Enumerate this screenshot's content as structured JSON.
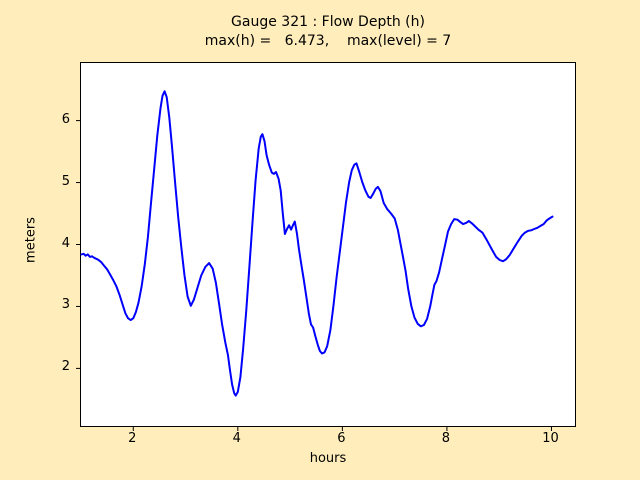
{
  "figure": {
    "background_color": "#ffeebb",
    "plot_background_color": "#ffffff",
    "frame_color": "#000000"
  },
  "chart_data": {
    "type": "line",
    "title": "Gauge 321 : Flow Depth (h)",
    "subtitle": "max(h) =   6.473,    max(level) = 7",
    "xlabel": "hours",
    "ylabel": "meters",
    "max_h": 6.473,
    "max_level": 7,
    "xlim": [
      1.0,
      10.45
    ],
    "ylim": [
      1.07,
      6.93
    ],
    "x_ticks": [
      2,
      4,
      6,
      8,
      10
    ],
    "y_ticks": [
      2,
      3,
      4,
      5,
      6
    ],
    "grid": false,
    "legend": null,
    "series": [
      {
        "name": "flow-depth-h",
        "color": "#0000ff",
        "line_width": 2,
        "points": [
          [
            1.01,
            3.84
          ],
          [
            1.05,
            3.85
          ],
          [
            1.09,
            3.82
          ],
          [
            1.13,
            3.84
          ],
          [
            1.17,
            3.8
          ],
          [
            1.21,
            3.81
          ],
          [
            1.26,
            3.78
          ],
          [
            1.32,
            3.76
          ],
          [
            1.38,
            3.72
          ],
          [
            1.44,
            3.66
          ],
          [
            1.5,
            3.6
          ],
          [
            1.56,
            3.51
          ],
          [
            1.62,
            3.42
          ],
          [
            1.68,
            3.32
          ],
          [
            1.74,
            3.18
          ],
          [
            1.8,
            3.02
          ],
          [
            1.85,
            2.89
          ],
          [
            1.9,
            2.81
          ],
          [
            1.95,
            2.78
          ],
          [
            2.0,
            2.81
          ],
          [
            2.05,
            2.91
          ],
          [
            2.1,
            3.06
          ],
          [
            2.16,
            3.32
          ],
          [
            2.22,
            3.68
          ],
          [
            2.28,
            4.12
          ],
          [
            2.34,
            4.67
          ],
          [
            2.4,
            5.22
          ],
          [
            2.46,
            5.76
          ],
          [
            2.52,
            6.2
          ],
          [
            2.56,
            6.4
          ],
          [
            2.6,
            6.473
          ],
          [
            2.64,
            6.38
          ],
          [
            2.69,
            6.05
          ],
          [
            2.74,
            5.58
          ],
          [
            2.8,
            5.0
          ],
          [
            2.86,
            4.44
          ],
          [
            2.92,
            3.94
          ],
          [
            2.98,
            3.5
          ],
          [
            3.04,
            3.16
          ],
          [
            3.1,
            3.01
          ],
          [
            3.16,
            3.11
          ],
          [
            3.22,
            3.28
          ],
          [
            3.3,
            3.5
          ],
          [
            3.38,
            3.64
          ],
          [
            3.45,
            3.7
          ],
          [
            3.52,
            3.61
          ],
          [
            3.58,
            3.38
          ],
          [
            3.64,
            3.05
          ],
          [
            3.7,
            2.71
          ],
          [
            3.76,
            2.42
          ],
          [
            3.81,
            2.22
          ],
          [
            3.85,
            1.97
          ],
          [
            3.89,
            1.74
          ],
          [
            3.93,
            1.6
          ],
          [
            3.96,
            1.56
          ],
          [
            4.0,
            1.62
          ],
          [
            4.05,
            1.86
          ],
          [
            4.1,
            2.31
          ],
          [
            4.16,
            2.92
          ],
          [
            4.22,
            3.62
          ],
          [
            4.28,
            4.36
          ],
          [
            4.34,
            5.04
          ],
          [
            4.4,
            5.55
          ],
          [
            4.44,
            5.74
          ],
          [
            4.47,
            5.78
          ],
          [
            4.51,
            5.67
          ],
          [
            4.55,
            5.44
          ],
          [
            4.6,
            5.28
          ],
          [
            4.65,
            5.16
          ],
          [
            4.69,
            5.14
          ],
          [
            4.73,
            5.17
          ],
          [
            4.78,
            5.06
          ],
          [
            4.82,
            4.87
          ],
          [
            4.86,
            4.5
          ],
          [
            4.9,
            4.17
          ],
          [
            4.94,
            4.25
          ],
          [
            4.98,
            4.31
          ],
          [
            5.02,
            4.24
          ],
          [
            5.06,
            4.32
          ],
          [
            5.09,
            4.37
          ],
          [
            5.13,
            4.18
          ],
          [
            5.17,
            3.92
          ],
          [
            5.21,
            3.7
          ],
          [
            5.26,
            3.44
          ],
          [
            5.31,
            3.16
          ],
          [
            5.36,
            2.88
          ],
          [
            5.4,
            2.71
          ],
          [
            5.44,
            2.66
          ],
          [
            5.48,
            2.53
          ],
          [
            5.53,
            2.38
          ],
          [
            5.57,
            2.28
          ],
          [
            5.61,
            2.24
          ],
          [
            5.66,
            2.26
          ],
          [
            5.71,
            2.36
          ],
          [
            5.77,
            2.62
          ],
          [
            5.83,
            3.02
          ],
          [
            5.89,
            3.47
          ],
          [
            5.95,
            3.88
          ],
          [
            6.01,
            4.28
          ],
          [
            6.07,
            4.68
          ],
          [
            6.13,
            5.01
          ],
          [
            6.18,
            5.2
          ],
          [
            6.23,
            5.29
          ],
          [
            6.27,
            5.31
          ],
          [
            6.32,
            5.18
          ],
          [
            6.38,
            5.01
          ],
          [
            6.44,
            4.87
          ],
          [
            6.5,
            4.77
          ],
          [
            6.54,
            4.75
          ],
          [
            6.59,
            4.82
          ],
          [
            6.64,
            4.9
          ],
          [
            6.68,
            4.93
          ],
          [
            6.73,
            4.86
          ],
          [
            6.79,
            4.67
          ],
          [
            6.86,
            4.57
          ],
          [
            6.93,
            4.5
          ],
          [
            7.0,
            4.42
          ],
          [
            7.06,
            4.24
          ],
          [
            7.11,
            4.02
          ],
          [
            7.16,
            3.8
          ],
          [
            7.21,
            3.57
          ],
          [
            7.26,
            3.28
          ],
          [
            7.32,
            3.0
          ],
          [
            7.38,
            2.82
          ],
          [
            7.44,
            2.72
          ],
          [
            7.5,
            2.68
          ],
          [
            7.56,
            2.7
          ],
          [
            7.62,
            2.8
          ],
          [
            7.68,
            3.0
          ],
          [
            7.72,
            3.18
          ],
          [
            7.76,
            3.35
          ],
          [
            7.8,
            3.41
          ],
          [
            7.85,
            3.55
          ],
          [
            7.91,
            3.78
          ],
          [
            7.96,
            3.97
          ],
          [
            8.02,
            4.21
          ],
          [
            8.08,
            4.33
          ],
          [
            8.14,
            4.41
          ],
          [
            8.2,
            4.4
          ],
          [
            8.26,
            4.36
          ],
          [
            8.31,
            4.33
          ],
          [
            8.37,
            4.35
          ],
          [
            8.42,
            4.38
          ],
          [
            8.48,
            4.34
          ],
          [
            8.54,
            4.29
          ],
          [
            8.6,
            4.24
          ],
          [
            8.68,
            4.19
          ],
          [
            8.77,
            4.06
          ],
          [
            8.86,
            3.92
          ],
          [
            8.94,
            3.8
          ],
          [
            9.01,
            3.75
          ],
          [
            9.07,
            3.73
          ],
          [
            9.13,
            3.76
          ],
          [
            9.2,
            3.83
          ],
          [
            9.28,
            3.94
          ],
          [
            9.36,
            4.05
          ],
          [
            9.43,
            4.14
          ],
          [
            9.49,
            4.19
          ],
          [
            9.55,
            4.22
          ],
          [
            9.61,
            4.23
          ],
          [
            9.67,
            4.25
          ],
          [
            9.73,
            4.27
          ],
          [
            9.79,
            4.3
          ],
          [
            9.85,
            4.33
          ],
          [
            9.91,
            4.39
          ],
          [
            9.96,
            4.42
          ],
          [
            10.02,
            4.45
          ]
        ]
      }
    ],
    "tick_style": {
      "direction": "out",
      "length": 5
    }
  }
}
